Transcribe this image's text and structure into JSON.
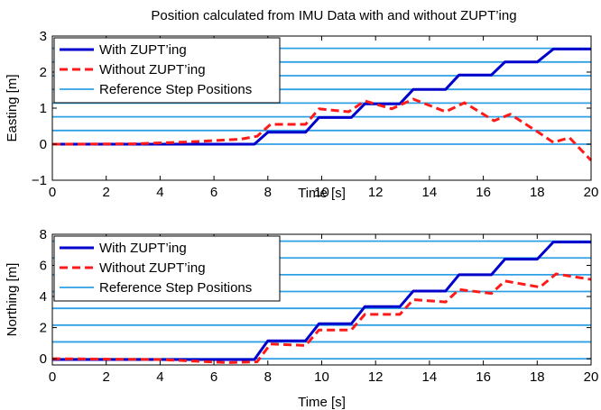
{
  "chart_data": [
    {
      "type": "line",
      "title": "Position calculated from IMU Data with and without ZUPT’ing",
      "xlabel": "Time [s]",
      "ylabel": "Easting [m]",
      "xlim": [
        0,
        20
      ],
      "ylim": [
        -1,
        3
      ],
      "xticks": [
        "0",
        "2",
        "4",
        "6",
        "8",
        "10",
        "12",
        "14",
        "16",
        "18",
        "20"
      ],
      "yticks": [
        "−1",
        "0",
        "1",
        "2",
        "3"
      ],
      "legend_position": "top-left",
      "reference_positions": [
        0,
        0.38,
        0.76,
        1.14,
        1.52,
        1.9,
        2.28,
        2.66
      ],
      "series": [
        {
          "name": "With ZUPT’ing",
          "color": "#0000cc",
          "style": "solid",
          "x": [
            0,
            7.5,
            8.0,
            9.4,
            9.9,
            11.1,
            11.6,
            12.9,
            13.4,
            14.6,
            15.1,
            16.3,
            16.8,
            18.0,
            18.6,
            20.0
          ],
          "y": [
            0,
            0,
            0.33,
            0.33,
            0.74,
            0.74,
            1.12,
            1.12,
            1.52,
            1.52,
            1.92,
            1.92,
            2.28,
            2.28,
            2.64,
            2.64
          ]
        },
        {
          "name": "Without ZUPT’ing",
          "color": "#ff1a1a",
          "style": "dashed",
          "x": [
            0,
            3.0,
            5.0,
            7.0,
            7.6,
            8.1,
            9.4,
            9.9,
            11.0,
            11.6,
            12.6,
            13.4,
            14.6,
            15.3,
            16.4,
            17.0,
            18.0,
            18.6,
            19.2,
            20.0
          ],
          "y": [
            0,
            0.01,
            0.06,
            0.14,
            0.22,
            0.55,
            0.55,
            0.98,
            0.9,
            1.2,
            0.98,
            1.25,
            0.9,
            1.15,
            0.65,
            0.83,
            0.35,
            0.05,
            0.18,
            -0.45
          ]
        },
        {
          "name": "Reference Step Positions",
          "color": "#2fa0e6",
          "style": "solid"
        }
      ]
    },
    {
      "type": "line",
      "title": "",
      "xlabel": "Time [s]",
      "ylabel": "Northing [m]",
      "xlim": [
        0,
        20
      ],
      "ylim": [
        -0.4,
        8
      ],
      "xticks": [
        "0",
        "2",
        "4",
        "6",
        "8",
        "10",
        "12",
        "14",
        "16",
        "18",
        "20"
      ],
      "yticks": [
        "0",
        "2",
        "4",
        "6",
        "8"
      ],
      "legend_position": "top-left",
      "reference_positions": [
        0,
        1.08,
        2.16,
        3.24,
        4.32,
        5.4,
        6.48,
        7.56
      ],
      "series": [
        {
          "name": "With ZUPT’ing",
          "color": "#0000cc",
          "style": "solid",
          "x": [
            0,
            7.5,
            8.0,
            9.4,
            9.9,
            11.1,
            11.6,
            12.9,
            13.4,
            14.6,
            15.1,
            16.3,
            16.8,
            18.0,
            18.6,
            20.0
          ],
          "y": [
            -0.05,
            -0.05,
            1.15,
            1.15,
            2.25,
            2.25,
            3.35,
            3.35,
            4.35,
            4.35,
            5.4,
            5.4,
            6.4,
            6.4,
            7.5,
            7.5
          ]
        },
        {
          "name": "Without ZUPT’ing",
          "color": "#ff1a1a",
          "style": "dashed",
          "x": [
            0,
            4.0,
            6.5,
            7.6,
            8.1,
            9.4,
            9.9,
            11.1,
            11.6,
            12.9,
            13.4,
            14.6,
            15.1,
            16.3,
            16.8,
            18.1,
            18.7,
            20.0
          ],
          "y": [
            0,
            -0.05,
            -0.25,
            -0.2,
            0.95,
            0.85,
            1.85,
            1.85,
            2.85,
            2.85,
            3.8,
            3.65,
            4.45,
            4.2,
            5.0,
            4.6,
            5.45,
            5.1
          ]
        },
        {
          "name": "Reference Step Positions",
          "color": "#2fa0e6",
          "style": "solid"
        }
      ]
    }
  ]
}
